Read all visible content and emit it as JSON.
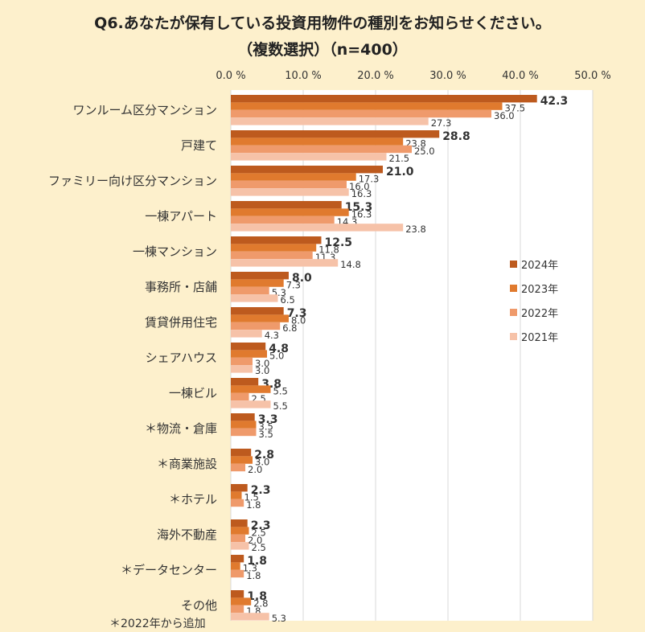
{
  "title": "Q6.あなたが保有している投資用物件の種別をお知らせください。",
  "subtitle": "（複数選択）（n=400）",
  "footnote": "＊2022年から追加",
  "chart_data": {
    "type": "bar",
    "orientation": "horizontal",
    "xlim": [
      0,
      50
    ],
    "ticks": [
      "0.0 %",
      "10.0 %",
      "20.0 %",
      "30.0 %",
      "40.0 %",
      "50.0 %"
    ],
    "tick_values": [
      0,
      10,
      20,
      30,
      40,
      50
    ],
    "grid": true,
    "legend_position": "right",
    "categories": [
      "ワンルーム区分マンション",
      "戸建て",
      "ファミリー向け区分マンション",
      "一棟アパート",
      "一棟マンション",
      "事務所・店舗",
      "賃貸併用住宅",
      "シェアハウス",
      "一棟ビル",
      "＊物流・倉庫",
      "＊商業施設",
      "＊ホテル",
      "海外不動産",
      "＊データセンター",
      "その他"
    ],
    "series": [
      {
        "name": "2024年",
        "color": "#bd5a1e",
        "values": [
          42.3,
          28.8,
          21.0,
          15.3,
          12.5,
          8.0,
          7.3,
          4.8,
          3.8,
          3.3,
          2.8,
          2.3,
          2.3,
          1.8,
          1.8
        ],
        "labels": [
          "42.3",
          "28.8",
          "21.0",
          "15.3",
          "12.5",
          "8.0",
          "7.3",
          "4.8",
          "3.8",
          "3.3",
          "2.8",
          "2.3",
          "2.3",
          "1.8",
          "1.8"
        ]
      },
      {
        "name": "2023年",
        "color": "#e07a2e",
        "values": [
          37.5,
          23.8,
          17.3,
          16.3,
          11.8,
          7.3,
          8.0,
          5.0,
          5.5,
          3.5,
          3.0,
          1.5,
          2.5,
          1.3,
          2.8
        ],
        "labels": [
          "37.5",
          "23.8",
          "17.3",
          "16.3",
          "11.8",
          "7.3",
          "8.0",
          "5.0",
          "5.5",
          "3.5",
          "3.0",
          "1.5",
          "2.5",
          "1.3",
          "2.8"
        ]
      },
      {
        "name": "2022年",
        "color": "#ef9a6b",
        "values": [
          36.0,
          25.0,
          16.0,
          14.3,
          11.3,
          5.3,
          6.8,
          3.0,
          2.5,
          3.5,
          2.0,
          1.8,
          2.0,
          1.8,
          1.8
        ],
        "labels": [
          "36.0",
          "25.0",
          "16.0",
          "14.3",
          "11.3",
          "5.3",
          "6.8",
          "3.0",
          "2.5",
          "3.5",
          "2.0",
          "1.8",
          "2.0",
          "1.8",
          "1.8"
        ]
      },
      {
        "name": "2021年",
        "color": "#f6c2a8",
        "values": [
          27.3,
          21.5,
          16.3,
          23.8,
          14.8,
          6.5,
          4.3,
          3.0,
          5.5,
          null,
          null,
          null,
          2.5,
          null,
          5.3
        ],
        "labels": [
          "27.3",
          "21.5",
          "16.3",
          "23.8",
          "14.8",
          "6.5",
          "4.3",
          "3.0",
          "5.5",
          "",
          "",
          "",
          "2.5",
          "",
          "5.3"
        ]
      }
    ]
  }
}
